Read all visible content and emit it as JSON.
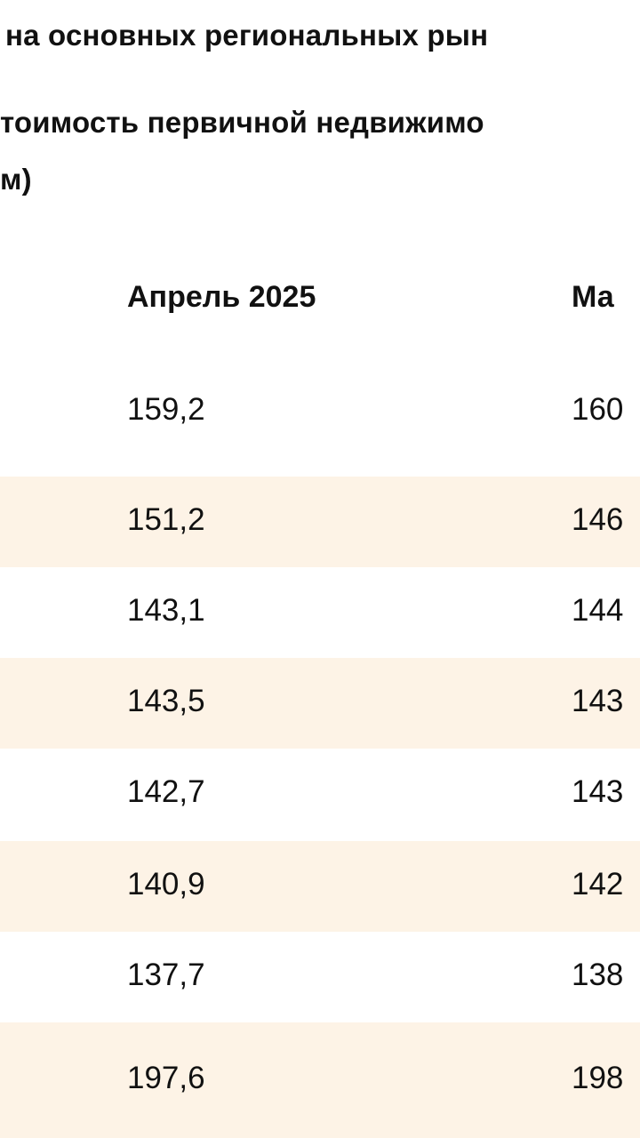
{
  "heading": {
    "line1": "на основных региональных рын",
    "line2": "тоимость первичной недвижимо",
    "line3": "м)"
  },
  "table": {
    "columns": [
      "Апрель 2025",
      "Ма"
    ],
    "rows": [
      {
        "a": "159,2",
        "b": "160"
      },
      {
        "a": "151,2",
        "b": "146"
      },
      {
        "a": "143,1",
        "b": "144"
      },
      {
        "a": "143,5",
        "b": "143"
      },
      {
        "a": "142,7",
        "b": "143"
      },
      {
        "a": "140,9",
        "b": "142"
      },
      {
        "a": "137,7",
        "b": "138"
      },
      {
        "a": "197,6",
        "b": "198"
      }
    ]
  },
  "colors": {
    "stripe": "#fdf3e6",
    "text": "#111111"
  }
}
